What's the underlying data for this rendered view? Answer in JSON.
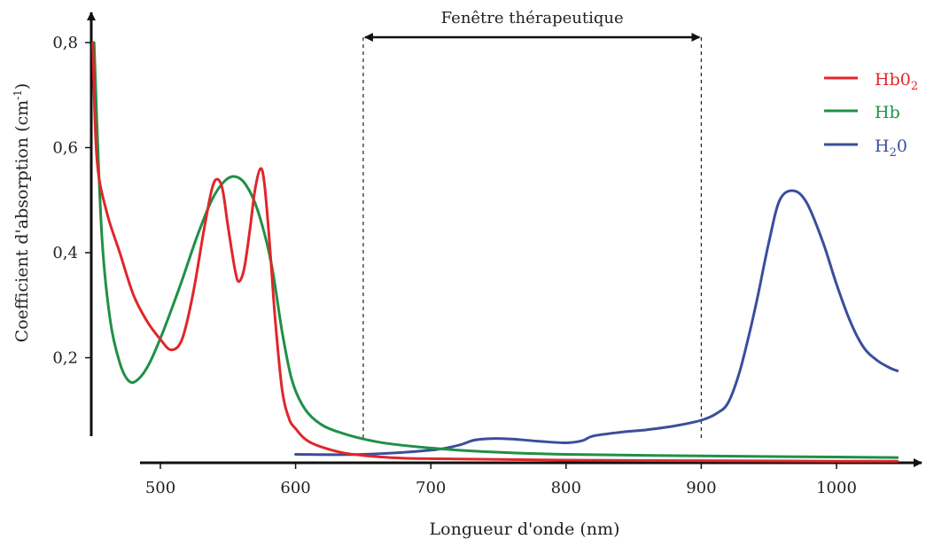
{
  "chart_data": {
    "type": "line",
    "title": "",
    "xlabel": "Longueur d'onde (nm)",
    "ylabel_main": "Coefficient d'absorption (cm",
    "ylabel_sup": "-1",
    "ylabel_close": ")",
    "xlim": [
      450,
      1050
    ],
    "ylim": [
      0,
      0.8
    ],
    "xticks": [
      {
        "value": 500,
        "label": "500"
      },
      {
        "value": 600,
        "label": "600"
      },
      {
        "value": 700,
        "label": "700"
      },
      {
        "value": 800,
        "label": "800"
      },
      {
        "value": 900,
        "label": "900"
      },
      {
        "value": 1000,
        "label": "1000"
      }
    ],
    "yticks": [
      {
        "value": 0.2,
        "label": "0,2"
      },
      {
        "value": 0.4,
        "label": "0,4"
      },
      {
        "value": 0.6,
        "label": "0,6"
      },
      {
        "value": 0.8,
        "label": "0,8"
      }
    ],
    "annotation": {
      "label": "Fenêtre thérapeutique",
      "from": 650,
      "to": 900
    },
    "legend_position": "top-right",
    "series": [
      {
        "name": "HbO2",
        "name_main": "Hb0",
        "name_sub": "2",
        "color": "#e0262a",
        "points": [
          [
            450,
            0.8
          ],
          [
            453,
            0.58
          ],
          [
            460,
            0.48
          ],
          [
            470,
            0.4
          ],
          [
            480,
            0.32
          ],
          [
            490,
            0.27
          ],
          [
            500,
            0.235
          ],
          [
            508,
            0.215
          ],
          [
            516,
            0.235
          ],
          [
            524,
            0.32
          ],
          [
            532,
            0.44
          ],
          [
            538,
            0.52
          ],
          [
            542,
            0.54
          ],
          [
            546,
            0.52
          ],
          [
            550,
            0.45
          ],
          [
            555,
            0.37
          ],
          [
            558,
            0.345
          ],
          [
            562,
            0.37
          ],
          [
            566,
            0.44
          ],
          [
            570,
            0.52
          ],
          [
            574,
            0.56
          ],
          [
            577,
            0.53
          ],
          [
            581,
            0.41
          ],
          [
            585,
            0.27
          ],
          [
            590,
            0.14
          ],
          [
            595,
            0.085
          ],
          [
            600,
            0.065
          ],
          [
            610,
            0.04
          ],
          [
            630,
            0.022
          ],
          [
            650,
            0.014
          ],
          [
            690,
            0.008
          ],
          [
            800,
            0.005
          ],
          [
            1000,
            0.003
          ],
          [
            1045,
            0.003
          ]
        ]
      },
      {
        "name": "Hb",
        "name_main": "Hb",
        "name_sub": "",
        "color": "#1f9046",
        "points": [
          [
            451,
            0.8
          ],
          [
            453,
            0.65
          ],
          [
            457,
            0.42
          ],
          [
            463,
            0.27
          ],
          [
            470,
            0.19
          ],
          [
            477,
            0.155
          ],
          [
            484,
            0.16
          ],
          [
            492,
            0.19
          ],
          [
            502,
            0.25
          ],
          [
            515,
            0.34
          ],
          [
            527,
            0.43
          ],
          [
            538,
            0.5
          ],
          [
            547,
            0.535
          ],
          [
            555,
            0.545
          ],
          [
            563,
            0.53
          ],
          [
            572,
            0.48
          ],
          [
            582,
            0.38
          ],
          [
            590,
            0.25
          ],
          [
            597,
            0.16
          ],
          [
            605,
            0.11
          ],
          [
            615,
            0.08
          ],
          [
            630,
            0.06
          ],
          [
            660,
            0.04
          ],
          [
            700,
            0.028
          ],
          [
            750,
            0.02
          ],
          [
            800,
            0.016
          ],
          [
            900,
            0.013
          ],
          [
            1000,
            0.011
          ],
          [
            1045,
            0.01
          ]
        ]
      },
      {
        "name": "H2O",
        "name_main": "H",
        "name_sub": "2",
        "name_after": "0",
        "color": "#3b4d9c",
        "points": [
          [
            600,
            0.016
          ],
          [
            650,
            0.016
          ],
          [
            700,
            0.024
          ],
          [
            720,
            0.033
          ],
          [
            732,
            0.043
          ],
          [
            745,
            0.046
          ],
          [
            760,
            0.045
          ],
          [
            780,
            0.041
          ],
          [
            800,
            0.038
          ],
          [
            812,
            0.042
          ],
          [
            820,
            0.051
          ],
          [
            840,
            0.058
          ],
          [
            860,
            0.063
          ],
          [
            880,
            0.07
          ],
          [
            900,
            0.081
          ],
          [
            912,
            0.095
          ],
          [
            920,
            0.115
          ],
          [
            928,
            0.17
          ],
          [
            935,
            0.24
          ],
          [
            942,
            0.32
          ],
          [
            950,
            0.42
          ],
          [
            958,
            0.5
          ],
          [
            968,
            0.518
          ],
          [
            978,
            0.495
          ],
          [
            990,
            0.42
          ],
          [
            1000,
            0.34
          ],
          [
            1010,
            0.27
          ],
          [
            1020,
            0.22
          ],
          [
            1030,
            0.195
          ],
          [
            1040,
            0.18
          ],
          [
            1045,
            0.175
          ]
        ]
      }
    ]
  }
}
